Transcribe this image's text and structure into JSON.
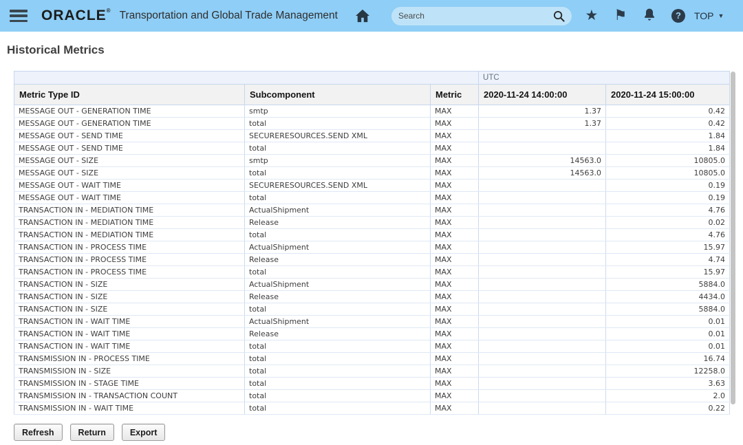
{
  "header": {
    "brand": "ORACLE",
    "brand_reg_mark": "®",
    "app_title": "Transportation and Global Trade Management",
    "search": {
      "placeholder": "Search",
      "value": ""
    },
    "user_menu_label": "TOP",
    "icons": {
      "menu": "hamburger-icon",
      "home": "home-icon",
      "search": "search-icon",
      "star": "★",
      "flag": "⚑",
      "bell": "bell-icon",
      "help": "?",
      "caret_down": "▼"
    },
    "colors": {
      "bar_bg": "#8FCEF6",
      "search_bg": "#BEE3F8",
      "icon": "#2C3B49"
    }
  },
  "page": {
    "title": "Historical Metrics"
  },
  "table": {
    "timezone_label": "UTC",
    "columns": [
      "Metric Type ID",
      "Subcomponent",
      "Metric",
      "2020-11-24 14:00:00",
      "2020-11-24 15:00:00"
    ],
    "rows": [
      [
        "MESSAGE OUT - GENERATION TIME",
        "smtp",
        "MAX",
        "1.37",
        "0.42"
      ],
      [
        "MESSAGE OUT - GENERATION TIME",
        "total",
        "MAX",
        "1.37",
        "0.42"
      ],
      [
        "MESSAGE OUT - SEND TIME",
        "SECURERESOURCES.SEND XML",
        "MAX",
        "",
        "1.84"
      ],
      [
        "MESSAGE OUT - SEND TIME",
        "total",
        "MAX",
        "",
        "1.84"
      ],
      [
        "MESSAGE OUT - SIZE",
        "smtp",
        "MAX",
        "14563.0",
        "10805.0"
      ],
      [
        "MESSAGE OUT - SIZE",
        "total",
        "MAX",
        "14563.0",
        "10805.0"
      ],
      [
        "MESSAGE OUT - WAIT TIME",
        "SECURERESOURCES.SEND XML",
        "MAX",
        "",
        "0.19"
      ],
      [
        "MESSAGE OUT - WAIT TIME",
        "total",
        "MAX",
        "",
        "0.19"
      ],
      [
        "TRANSACTION IN - MEDIATION TIME",
        "ActualShipment",
        "MAX",
        "",
        "4.76"
      ],
      [
        "TRANSACTION IN - MEDIATION TIME",
        "Release",
        "MAX",
        "",
        "0.02"
      ],
      [
        "TRANSACTION IN - MEDIATION TIME",
        "total",
        "MAX",
        "",
        "4.76"
      ],
      [
        "TRANSACTION IN - PROCESS TIME",
        "ActualShipment",
        "MAX",
        "",
        "15.97"
      ],
      [
        "TRANSACTION IN - PROCESS TIME",
        "Release",
        "MAX",
        "",
        "4.74"
      ],
      [
        "TRANSACTION IN - PROCESS TIME",
        "total",
        "MAX",
        "",
        "15.97"
      ],
      [
        "TRANSACTION IN - SIZE",
        "ActualShipment",
        "MAX",
        "",
        "5884.0"
      ],
      [
        "TRANSACTION IN - SIZE",
        "Release",
        "MAX",
        "",
        "4434.0"
      ],
      [
        "TRANSACTION IN - SIZE",
        "total",
        "MAX",
        "",
        "5884.0"
      ],
      [
        "TRANSACTION IN - WAIT TIME",
        "ActualShipment",
        "MAX",
        "",
        "0.01"
      ],
      [
        "TRANSACTION IN - WAIT TIME",
        "Release",
        "MAX",
        "",
        "0.01"
      ],
      [
        "TRANSACTION IN - WAIT TIME",
        "total",
        "MAX",
        "",
        "0.01"
      ],
      [
        "TRANSMISSION IN - PROCESS TIME",
        "total",
        "MAX",
        "",
        "16.74"
      ],
      [
        "TRANSMISSION IN - SIZE",
        "total",
        "MAX",
        "",
        "12258.0"
      ],
      [
        "TRANSMISSION IN - STAGE TIME",
        "total",
        "MAX",
        "",
        "3.63"
      ],
      [
        "TRANSMISSION IN - TRANSACTION COUNT",
        "total",
        "MAX",
        "",
        "2.0"
      ],
      [
        "TRANSMISSION IN - WAIT TIME",
        "total",
        "MAX",
        "",
        "0.22"
      ]
    ]
  },
  "toolbar": {
    "refresh_label": "Refresh",
    "return_label": "Return",
    "export_label": "Export"
  }
}
